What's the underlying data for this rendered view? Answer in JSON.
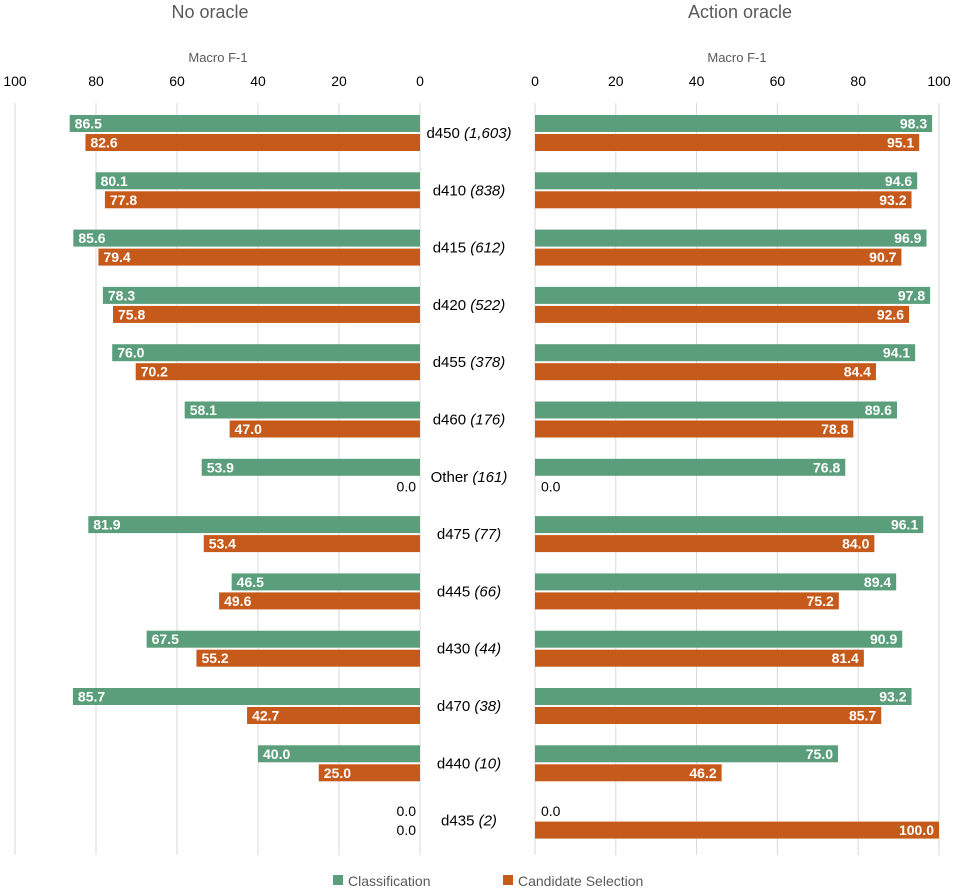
{
  "chart_data": {
    "type": "bar",
    "orientation": "horizontal",
    "axis_label": "Macro F-1",
    "axis_range": [
      0,
      100
    ],
    "ticks": [
      "0",
      "20",
      "40",
      "60",
      "80",
      "100"
    ],
    "categories": [
      {
        "code": "d450",
        "count": "(1,603)"
      },
      {
        "code": "d410",
        "count": "(838)"
      },
      {
        "code": "d415",
        "count": "(612)"
      },
      {
        "code": "d420",
        "count": "(522)"
      },
      {
        "code": "d455",
        "count": "(378)"
      },
      {
        "code": "d460",
        "count": "(176)"
      },
      {
        "code": "Other",
        "count": "(161)"
      },
      {
        "code": "d475",
        "count": "(77)"
      },
      {
        "code": "d445",
        "count": "(66)"
      },
      {
        "code": "d430",
        "count": "(44)"
      },
      {
        "code": "d470",
        "count": "(38)"
      },
      {
        "code": "d440",
        "count": "(10)"
      },
      {
        "code": "d435",
        "count": "(2)"
      }
    ],
    "panels": [
      {
        "title": "No oracle",
        "series": [
          {
            "name": "Classification",
            "color": "#5b9e7b",
            "values": [
              86.5,
              80.1,
              85.6,
              78.3,
              76.0,
              58.1,
              53.9,
              81.9,
              46.5,
              67.5,
              85.7,
              40.0,
              0.0
            ]
          },
          {
            "name": "Candidate Selection",
            "color": "#c55a1a",
            "values": [
              82.6,
              77.8,
              79.4,
              75.8,
              70.2,
              47.0,
              0.0,
              53.4,
              49.6,
              55.2,
              42.7,
              25.0,
              0.0
            ]
          }
        ]
      },
      {
        "title": "Action oracle",
        "series": [
          {
            "name": "Classification",
            "color": "#5b9e7b",
            "values": [
              98.3,
              94.6,
              96.9,
              97.8,
              94.1,
              89.6,
              76.8,
              96.1,
              89.4,
              90.9,
              93.2,
              75.0,
              0.0
            ]
          },
          {
            "name": "Candidate Selection",
            "color": "#c55a1a",
            "values": [
              95.1,
              93.2,
              90.7,
              92.6,
              84.4,
              78.8,
              0.0,
              84.0,
              75.2,
              81.4,
              85.7,
              46.2,
              100.0
            ]
          }
        ]
      }
    ],
    "legend": [
      "Classification",
      "Candidate Selection"
    ],
    "legend_position": "bottom"
  }
}
